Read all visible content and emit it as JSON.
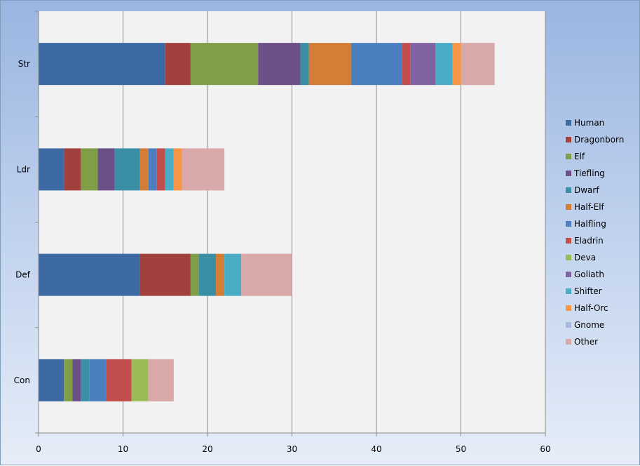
{
  "chart_data": {
    "type": "bar",
    "orientation": "horizontal",
    "stacked": true,
    "categories": [
      "Str",
      "Ldr",
      "Def",
      "Con"
    ],
    "xlim": [
      0,
      60
    ],
    "x_ticks": [
      0,
      10,
      20,
      30,
      40,
      50,
      60
    ],
    "grid": "vertical major gridlines",
    "legend_position": "right",
    "series": [
      {
        "name": "Human",
        "color": "#3d6aa2",
        "values": [
          15,
          3,
          12,
          3
        ]
      },
      {
        "name": "Dragonborn",
        "color": "#a0413e",
        "values": [
          3,
          2,
          6,
          0
        ]
      },
      {
        "name": "Elf",
        "color": "#809d47",
        "values": [
          8,
          2,
          1,
          1
        ]
      },
      {
        "name": "Tiefling",
        "color": "#6b5087",
        "values": [
          5,
          2,
          0,
          1
        ]
      },
      {
        "name": "Dwarf",
        "color": "#3b8fa4",
        "values": [
          1,
          3,
          2,
          1
        ]
      },
      {
        "name": "Half-Elf",
        "color": "#d27e37",
        "values": [
          5,
          1,
          1,
          0
        ]
      },
      {
        "name": "Halfling",
        "color": "#4b7fc0",
        "values": [
          6,
          1,
          0,
          2
        ]
      },
      {
        "name": "Eladrin",
        "color": "#c24e4e",
        "values": [
          1,
          1,
          0,
          3
        ]
      },
      {
        "name": "Deva",
        "color": "#9bbb59",
        "values": [
          0,
          0,
          0,
          2
        ]
      },
      {
        "name": "Goliath",
        "color": "#8064a2",
        "values": [
          3,
          0,
          0,
          0
        ]
      },
      {
        "name": "Shifter",
        "color": "#4bacc6",
        "values": [
          2,
          1,
          2,
          0
        ]
      },
      {
        "name": "Half-Orc",
        "color": "#f79646",
        "values": [
          1,
          1,
          0,
          0
        ]
      },
      {
        "name": "Gnome",
        "color": "#a9bbdd",
        "values": [
          0,
          0,
          0,
          0
        ]
      },
      {
        "name": "Other",
        "color": "#d9a8a8",
        "values": [
          4,
          5,
          6,
          3
        ]
      }
    ]
  }
}
